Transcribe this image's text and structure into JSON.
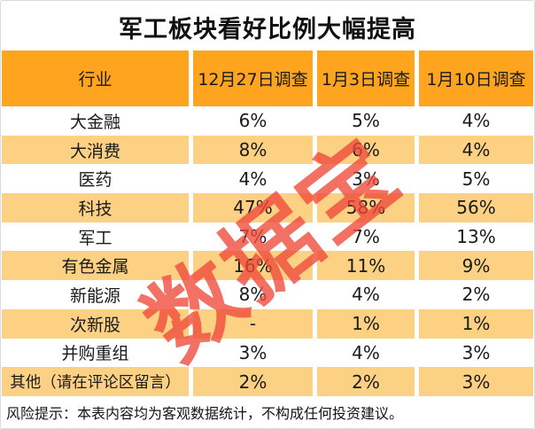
{
  "title": "军工板块看好比例大幅提高",
  "watermark_text": "数据宝",
  "colors": {
    "header_orange": "#ffa41e",
    "row_amber": "#fcd183",
    "watermark_red": "#ee4838",
    "text_black": "#1a1a1a",
    "frame_gray": "#dbdbdb"
  },
  "table": {
    "columns": [
      "行业",
      "12月27日调查",
      "1月3日调查",
      "1月10日调查"
    ],
    "rows": [
      {
        "industry": "大金融",
        "values": [
          "6%",
          "5%",
          "4%"
        ]
      },
      {
        "industry": "大消费",
        "values": [
          "8%",
          "6%",
          "4%"
        ]
      },
      {
        "industry": "医药",
        "values": [
          "4%",
          "3%",
          "5%"
        ]
      },
      {
        "industry": "科技",
        "values": [
          "47%",
          "58%",
          "56%"
        ]
      },
      {
        "industry": "军工",
        "values": [
          "7%",
          "7%",
          "13%"
        ]
      },
      {
        "industry": "有色金属",
        "values": [
          "16%",
          "11%",
          "9%"
        ]
      },
      {
        "industry": "新能源",
        "values": [
          "8%",
          "4%",
          "2%"
        ]
      },
      {
        "industry": "次新股",
        "values": [
          "-",
          "1%",
          "1%"
        ]
      },
      {
        "industry": "并购重组",
        "values": [
          "3%",
          "4%",
          "3%"
        ]
      },
      {
        "industry": "其他（请在评论区留言）",
        "values": [
          "2%",
          "2%",
          "3%"
        ]
      }
    ]
  },
  "footer": {
    "note": "风险提示：本表内容均为客观数据统计，不构成任何投资建议。"
  },
  "chart_data": {
    "type": "table",
    "title": "军工板块看好比例大幅提高",
    "categories": [
      "大金融",
      "大消费",
      "医药",
      "科技",
      "军工",
      "有色金属",
      "新能源",
      "次新股",
      "并购重组",
      "其他（请在评论区留言）"
    ],
    "series": [
      {
        "name": "12月27日调查",
        "values": [
          "6%",
          "8%",
          "4%",
          "47%",
          "7%",
          "16%",
          "8%",
          "-",
          "3%",
          "2%"
        ]
      },
      {
        "name": "1月3日调查",
        "values": [
          "5%",
          "6%",
          "3%",
          "58%",
          "7%",
          "11%",
          "4%",
          "1%",
          "4%",
          "2%"
        ]
      },
      {
        "name": "1月10日调查",
        "values": [
          "4%",
          "4%",
          "5%",
          "56%",
          "13%",
          "9%",
          "2%",
          "1%",
          "3%",
          "3%"
        ]
      }
    ],
    "note": "风险提示：本表内容均为客观数据统计，不构成任何投资建议。"
  }
}
